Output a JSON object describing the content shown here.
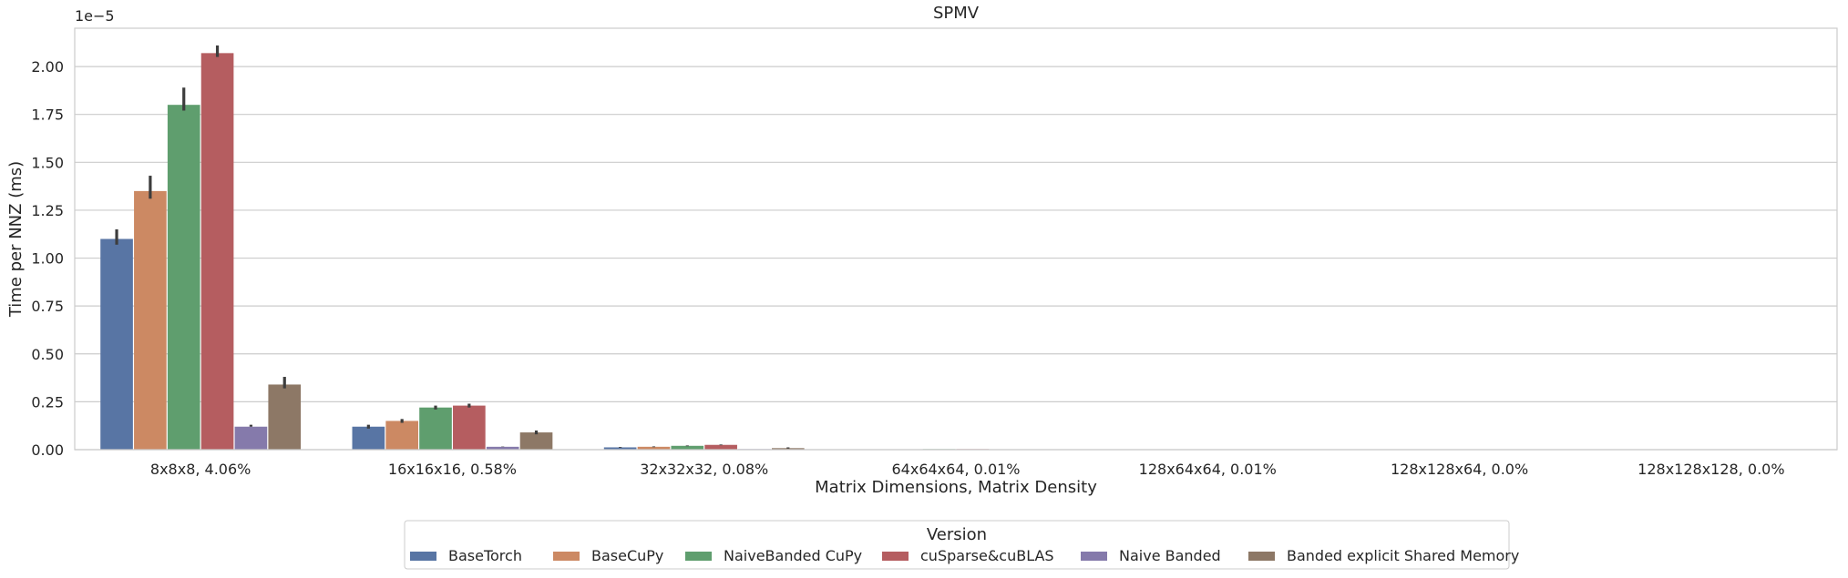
{
  "chart_data": {
    "type": "bar",
    "title": "SPMV",
    "xlabel": "Matrix Dimensions, Matrix Density",
    "ylabel": "Time per NNZ (ms)",
    "y_offset_label": "1e−5",
    "y_scale_factor": 1e-05,
    "ylim": [
      0,
      2.2
    ],
    "y_ticks": [
      0,
      0.25,
      0.5,
      0.75,
      1.0,
      1.25,
      1.5,
      1.75,
      2.0
    ],
    "y_tick_labels": [
      "0.00",
      "0.25",
      "0.50",
      "0.75",
      "1.00",
      "1.25",
      "1.50",
      "1.75",
      "2.00"
    ],
    "grid": "horizontal",
    "categories": [
      "8x8x8, 4.06%",
      "16x16x16, 0.58%",
      "32x32x32, 0.08%",
      "64x64x64, 0.01%",
      "128x64x64, 0.01%",
      "128x128x64, 0.0%",
      "128x128x128, 0.0%"
    ],
    "series": [
      {
        "name": "BaseTorch",
        "color": "#5875a4",
        "values": [
          1.1,
          0.12,
          0.012,
          0.002,
          0.001,
          0.0005,
          0.0003
        ],
        "err_low": [
          1.07,
          0.11,
          0.01,
          0.002,
          0.001,
          0.0005,
          0.0003
        ],
        "err_high": [
          1.15,
          0.13,
          0.014,
          0.002,
          0.001,
          0.0005,
          0.0003
        ]
      },
      {
        "name": "BaseCuPy",
        "color": "#cc8963",
        "values": [
          1.35,
          0.15,
          0.015,
          0.002,
          0.001,
          0.0005,
          0.0003
        ],
        "err_low": [
          1.31,
          0.14,
          0.013,
          0.002,
          0.001,
          0.0005,
          0.0003
        ],
        "err_high": [
          1.43,
          0.16,
          0.017,
          0.002,
          0.001,
          0.0005,
          0.0003
        ]
      },
      {
        "name": "NaiveBanded CuPy",
        "color": "#5f9e6e",
        "values": [
          1.8,
          0.22,
          0.02,
          0.003,
          0.001,
          0.0005,
          0.0003
        ],
        "err_low": [
          1.77,
          0.21,
          0.018,
          0.003,
          0.001,
          0.0005,
          0.0003
        ],
        "err_high": [
          1.89,
          0.23,
          0.022,
          0.003,
          0.001,
          0.0005,
          0.0003
        ]
      },
      {
        "name": "cuSparse&cuBLAS",
        "color": "#b55d60",
        "values": [
          2.07,
          0.23,
          0.025,
          0.003,
          0.001,
          0.0005,
          0.0003
        ],
        "err_low": [
          2.05,
          0.22,
          0.023,
          0.003,
          0.001,
          0.0005,
          0.0003
        ],
        "err_high": [
          2.11,
          0.24,
          0.027,
          0.003,
          0.001,
          0.0005,
          0.0003
        ]
      },
      {
        "name": "Naive Banded",
        "color": "#857aab",
        "values": [
          0.12,
          0.015,
          0.003,
          0.001,
          0.0005,
          0.0003,
          0.0002
        ],
        "err_low": [
          0.12,
          0.014,
          0.003,
          0.001,
          0.0005,
          0.0003,
          0.0002
        ],
        "err_high": [
          0.13,
          0.016,
          0.003,
          0.001,
          0.0005,
          0.0003,
          0.0002
        ]
      },
      {
        "name": "Banded explicit Shared Memory",
        "color": "#8d7866",
        "values": [
          0.34,
          0.09,
          0.008,
          0.002,
          0.001,
          0.0005,
          0.0003
        ],
        "err_low": [
          0.32,
          0.08,
          0.006,
          0.002,
          0.001,
          0.0005,
          0.0003
        ],
        "err_high": [
          0.38,
          0.1,
          0.012,
          0.002,
          0.001,
          0.0005,
          0.0003
        ]
      }
    ],
    "legend": {
      "title": "Version",
      "placement": "bottom-center"
    }
  }
}
